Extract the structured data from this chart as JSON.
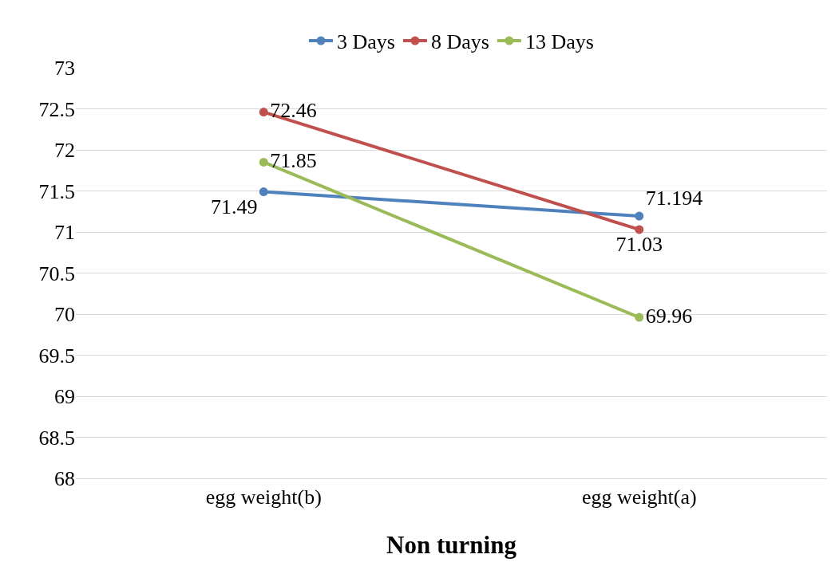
{
  "chart_data": {
    "type": "line",
    "xlabel": "Non turning",
    "categories": [
      "egg weight(b)",
      "egg weight(a)"
    ],
    "series": [
      {
        "name": "3 Days",
        "color": "#4f81bd",
        "values": [
          71.49,
          71.194
        ]
      },
      {
        "name": "8 Days",
        "color": "#c0504d",
        "values": [
          72.46,
          71.03
        ]
      },
      {
        "name": "13 Days",
        "color": "#9bbb59",
        "values": [
          71.85,
          69.96
        ]
      }
    ],
    "ylim": [
      68,
      73
    ],
    "yticks": [
      68,
      68.5,
      69,
      69.5,
      70,
      70.5,
      71,
      71.5,
      72,
      72.5,
      73
    ],
    "grid": "y",
    "legend": "top",
    "marker": "circle",
    "line_style": "solid",
    "data_labels": true
  }
}
